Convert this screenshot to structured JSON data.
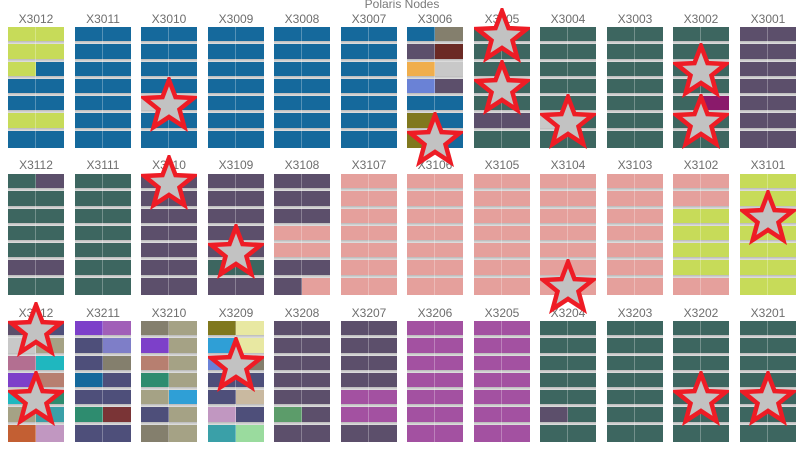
{
  "title": "Polaris Nodes",
  "colors": {
    "g": "#3d6660",
    "b": "#15699c",
    "p": "#5c4f6b",
    "y": "#c7db59",
    "s": "#e5a09c",
    "m": "#a351a1",
    "o": "#f0ae4c",
    "l": "#6a82d6",
    "v": "#80781e",
    "r": "#6b2a25",
    "a": "#847f6d",
    "t": "#a5a285",
    "k": "#c8c8c8",
    "c": "#1fb7bf",
    "n": "#c35f33",
    "q": "#c197c1",
    "u": "#7d40c9",
    "w": "#2e8c6f",
    "x": "#7a3436",
    "e": "#2f9fd6",
    "f": "#b77f70",
    "h": "#e8e8a2",
    "i": "#7e7ec8",
    "j": "#9adb9e",
    "z": "#8a1a6b",
    "d": "#4e4f7a",
    "A": "#3aa0a8",
    "B": "#c9b9a0",
    "C": "#5c9c6a",
    "D": "#a15fb8",
    "E": "#b36f91"
  },
  "rows": [
    {
      "racks": [
        {
          "label": "X3012",
          "cells": [
            "y",
            "y",
            "yb",
            "b",
            "b",
            "y",
            "b"
          ]
        },
        {
          "label": "X3011",
          "cells": [
            "b",
            "b",
            "b",
            "b",
            "b",
            "b",
            "b"
          ]
        },
        {
          "label": "X3010",
          "cells": [
            "b",
            "b",
            "b",
            "b",
            "kb",
            "b",
            "b"
          ]
        },
        {
          "label": "X3009",
          "cells": [
            "b",
            "b",
            "b",
            "b",
            "b",
            "b",
            "b"
          ]
        },
        {
          "label": "X3008",
          "cells": [
            "b",
            "b",
            "b",
            "b",
            "b",
            "b",
            "b"
          ]
        },
        {
          "label": "X3007",
          "cells": [
            "b",
            "b",
            "b",
            "b",
            "b",
            "b",
            "b"
          ]
        },
        {
          "label": "X3006",
          "cells": [
            "ba",
            "pr",
            "ok",
            "lp",
            "bb",
            "vb",
            "vb"
          ]
        },
        {
          "label": "X3005",
          "cells": [
            "g",
            "g",
            "g",
            "g",
            "g",
            "p",
            "g"
          ]
        },
        {
          "label": "X3004",
          "cells": [
            "g",
            "g",
            "g",
            "g",
            "g",
            "kg",
            "g"
          ]
        },
        {
          "label": "X3003",
          "cells": [
            "g",
            "g",
            "g",
            "g",
            "g",
            "g",
            "g"
          ]
        },
        {
          "label": "X3002",
          "cells": [
            "g",
            "g",
            "g",
            "g",
            "gz",
            "g",
            "g"
          ]
        },
        {
          "label": "X3001",
          "cells": [
            "p",
            "p",
            "p",
            "p",
            "p",
            "p",
            "p"
          ]
        }
      ]
    },
    {
      "racks": [
        {
          "label": "X3112",
          "cells": [
            "gp",
            "g",
            "g",
            "g",
            "g",
            "p",
            "g"
          ]
        },
        {
          "label": "X3111",
          "cells": [
            "g",
            "g",
            "g",
            "g",
            "g",
            "g",
            "g"
          ]
        },
        {
          "label": "X3110",
          "cells": [
            "p",
            "p",
            "p",
            "p",
            "p",
            "p",
            "p"
          ]
        },
        {
          "label": "X3109",
          "cells": [
            "p",
            "p",
            "p",
            "p",
            "p",
            "g",
            "p"
          ]
        },
        {
          "label": "X3108",
          "cells": [
            "p",
            "p",
            "p",
            "s",
            "s",
            "p",
            "ps"
          ]
        },
        {
          "label": "X3107",
          "cells": [
            "s",
            "s",
            "s",
            "s",
            "s",
            "s",
            "s"
          ]
        },
        {
          "label": "X3106",
          "cells": [
            "s",
            "s",
            "s",
            "s",
            "s",
            "s",
            "s"
          ]
        },
        {
          "label": "X3105",
          "cells": [
            "s",
            "s",
            "s",
            "s",
            "s",
            "s",
            "s"
          ]
        },
        {
          "label": "X3104",
          "cells": [
            "s",
            "s",
            "s",
            "s",
            "s",
            "s",
            "s"
          ]
        },
        {
          "label": "X3103",
          "cells": [
            "s",
            "s",
            "s",
            "s",
            "s",
            "s",
            "s"
          ]
        },
        {
          "label": "X3102",
          "cells": [
            "s",
            "s",
            "y",
            "y",
            "y",
            "y",
            "s"
          ]
        },
        {
          "label": "X3101",
          "cells": [
            "y",
            "y",
            "y",
            "y",
            "y",
            "y",
            "y"
          ]
        }
      ]
    },
    {
      "racks": [
        {
          "label": "X3212",
          "cells": [
            "pd",
            "kt",
            "Ec",
            "uf",
            "cw",
            "tA",
            "nq"
          ]
        },
        {
          "label": "X3211",
          "cells": [
            "uD",
            "di",
            "da",
            "bd",
            "dd",
            "wx",
            "dd"
          ]
        },
        {
          "label": "X3210",
          "cells": [
            "at",
            "ut",
            "ft",
            "wt",
            "te",
            "dt",
            "at"
          ]
        },
        {
          "label": "X3209",
          "cells": [
            "vh",
            "eh",
            "la",
            "dd",
            "dB",
            "qd",
            "Aj"
          ]
        },
        {
          "label": "X3208",
          "cells": [
            "p",
            "p",
            "p",
            "p",
            "p",
            "Cp",
            "p"
          ]
        },
        {
          "label": "X3207",
          "cells": [
            "p",
            "p",
            "p",
            "p",
            "m",
            "m",
            "p"
          ]
        },
        {
          "label": "X3206",
          "cells": [
            "m",
            "m",
            "m",
            "m",
            "m",
            "m",
            "m"
          ]
        },
        {
          "label": "X3205",
          "cells": [
            "m",
            "m",
            "m",
            "m",
            "m",
            "m",
            "m"
          ]
        },
        {
          "label": "X3204",
          "cells": [
            "g",
            "g",
            "g",
            "g",
            "g",
            "pg",
            "g"
          ]
        },
        {
          "label": "X3203",
          "cells": [
            "g",
            "g",
            "g",
            "g",
            "g",
            "g",
            "g"
          ]
        },
        {
          "label": "X3202",
          "cells": [
            "g",
            "g",
            "g",
            "g",
            "g",
            "g",
            "g"
          ]
        },
        {
          "label": "X3201",
          "cells": [
            "g",
            "g",
            "g",
            "g",
            "g",
            "g",
            "g"
          ]
        }
      ]
    }
  ],
  "flagged": [
    {
      "rack": "X3010",
      "cell": 4
    },
    {
      "rack": "X3006",
      "cell": 6
    },
    {
      "rack": "X3005",
      "cell": 0
    },
    {
      "rack": "X3005",
      "cell": 3
    },
    {
      "rack": "X3004",
      "cell": 5
    },
    {
      "rack": "X3002",
      "cell": 2
    },
    {
      "rack": "X3002",
      "cell": 5
    },
    {
      "rack": "X3110",
      "cell": 0
    },
    {
      "rack": "X3109",
      "cell": 4
    },
    {
      "rack": "X3104",
      "cell": 6
    },
    {
      "rack": "X3101",
      "cell": 2
    },
    {
      "rack": "X3212",
      "cell": 0
    },
    {
      "rack": "X3212",
      "cell": 4
    },
    {
      "rack": "X3209",
      "cell": 2
    },
    {
      "rack": "X3202",
      "cell": 4
    },
    {
      "rack": "X3201",
      "cell": 4
    }
  ]
}
